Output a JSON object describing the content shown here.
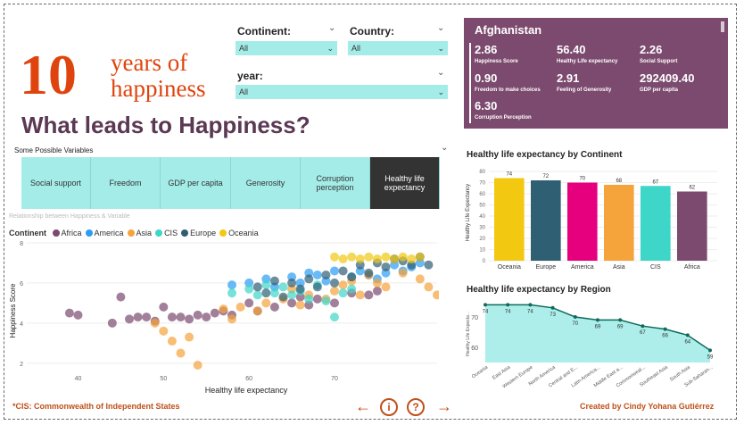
{
  "header": {
    "big_number": "10",
    "subtitle_line1": "years of",
    "subtitle_line2": "happiness",
    "title": "What leads to Happiness?"
  },
  "filters": {
    "continent": {
      "label": "Continent:",
      "value": "All"
    },
    "country": {
      "label": "Country:",
      "value": "All"
    },
    "year": {
      "label": "year:",
      "value": "All"
    }
  },
  "kpi": {
    "country": "Afghanistan",
    "items": [
      {
        "value": "2.86",
        "label": "Happiness Score"
      },
      {
        "value": "56.40",
        "label": "Healthy Life expectancy"
      },
      {
        "value": "2.26",
        "label": "Social Support"
      },
      {
        "value": "0.90",
        "label": "Freedom to make choices"
      },
      {
        "value": "2.91",
        "label": "Feeling of Generosity"
      },
      {
        "value": "292409.40",
        "label": "GDP per capita"
      },
      {
        "value": "6.30",
        "label": "Corruption Perception"
      }
    ],
    "bg_color": "#7b4a6e"
  },
  "variables": {
    "title": "Some Possible Variables",
    "buttons": [
      "Social support",
      "Freedom",
      "GDP per capita",
      "Generosity",
      "Corruption perception",
      "Healthy life expectancy"
    ],
    "active": "Healthy life expectancy"
  },
  "scatter": {
    "subtitle": "Relationship between Happiness & Variable",
    "legend_title": "Continent",
    "xlabel": "Healthy life expectancy",
    "ylabel": "Happiness Score"
  },
  "footer": {
    "note": "*CIS: Commonwealth of Independent States",
    "credit": "Created by Cindy Yohana Gutiérrez"
  },
  "nav": {
    "back": "back-arrow-icon",
    "info": "info-icon",
    "help": "help-icon",
    "next": "next-arrow-icon"
  },
  "chart_data": [
    {
      "type": "scatter",
      "title": "",
      "xlabel": "Healthy life expectancy",
      "ylabel": "Happiness Score",
      "xlim": [
        34,
        82
      ],
      "ylim": [
        1.5,
        8
      ],
      "xticks": [
        40,
        50,
        60,
        70
      ],
      "yticks": [
        2,
        4,
        6,
        8
      ],
      "series": [
        {
          "name": "Africa",
          "color": "#7b4a6e",
          "points": [
            [
              39,
              4.5
            ],
            [
              40,
              4.4
            ],
            [
              44,
              4.0
            ],
            [
              45,
              5.3
            ],
            [
              46,
              4.2
            ],
            [
              47,
              4.3
            ],
            [
              48,
              4.3
            ],
            [
              49,
              4.1
            ],
            [
              50,
              4.8
            ],
            [
              51,
              4.3
            ],
            [
              52,
              4.3
            ],
            [
              53,
              4.2
            ],
            [
              54,
              4.4
            ],
            [
              55,
              4.3
            ],
            [
              56,
              4.5
            ],
            [
              57,
              4.6
            ],
            [
              58,
              4.4
            ],
            [
              60,
              5.0
            ],
            [
              61,
              4.6
            ],
            [
              63,
              4.8
            ],
            [
              65,
              5.0
            ],
            [
              66,
              5.3
            ],
            [
              67,
              4.9
            ],
            [
              68,
              5.2
            ],
            [
              70,
              5.0
            ],
            [
              72,
              5.5
            ],
            [
              74,
              5.4
            ],
            [
              75,
              5.6
            ]
          ]
        },
        {
          "name": "America",
          "color": "#2a9df4",
          "points": [
            [
              58,
              5.9
            ],
            [
              60,
              6.0
            ],
            [
              62,
              6.2
            ],
            [
              63,
              5.8
            ],
            [
              65,
              6.3
            ],
            [
              66,
              6.0
            ],
            [
              67,
              6.5
            ],
            [
              68,
              6.4
            ],
            [
              69,
              6.1
            ],
            [
              70,
              6.6
            ],
            [
              72,
              6.3
            ],
            [
              73,
              6.6
            ],
            [
              74,
              6.4
            ],
            [
              75,
              6.2
            ],
            [
              76,
              6.5
            ],
            [
              77,
              6.9
            ],
            [
              78,
              6.6
            ],
            [
              79,
              6.8
            ],
            [
              80,
              7.0
            ]
          ]
        },
        {
          "name": "Asia",
          "color": "#f5a33b",
          "points": [
            [
              49,
              4.0
            ],
            [
              50,
              3.6
            ],
            [
              51,
              3.1
            ],
            [
              52,
              2.5
            ],
            [
              53,
              3.3
            ],
            [
              54,
              1.9
            ],
            [
              57,
              4.7
            ],
            [
              58,
              4.2
            ],
            [
              59,
              4.8
            ],
            [
              61,
              4.6
            ],
            [
              62,
              5.0
            ],
            [
              64,
              5.2
            ],
            [
              65,
              5.7
            ],
            [
              66,
              4.9
            ],
            [
              67,
              5.4
            ],
            [
              69,
              5.2
            ],
            [
              70,
              5.6
            ],
            [
              71,
              5.9
            ],
            [
              72,
              6.1
            ],
            [
              73,
              5.4
            ],
            [
              74,
              6.4
            ],
            [
              75,
              6.0
            ],
            [
              76,
              5.8
            ],
            [
              78,
              6.5
            ],
            [
              80,
              6.2
            ],
            [
              81,
              5.8
            ],
            [
              82,
              5.4
            ]
          ]
        },
        {
          "name": "CIS",
          "color": "#3ed6c9",
          "points": [
            [
              58,
              5.5
            ],
            [
              60,
              5.7
            ],
            [
              61,
              5.4
            ],
            [
              62,
              5.9
            ],
            [
              63,
              5.5
            ],
            [
              64,
              5.8
            ],
            [
              65,
              5.4
            ],
            [
              66,
              5.6
            ],
            [
              67,
              5.2
            ],
            [
              68,
              5.9
            ],
            [
              69,
              5.1
            ],
            [
              70,
              4.3
            ],
            [
              71,
              5.5
            ],
            [
              72,
              5.7
            ]
          ]
        },
        {
          "name": "Europe",
          "color": "#2f5f73",
          "points": [
            [
              61,
              5.8
            ],
            [
              62,
              5.5
            ],
            [
              63,
              6.1
            ],
            [
              64,
              5.3
            ],
            [
              65,
              6.0
            ],
            [
              66,
              5.7
            ],
            [
              67,
              6.2
            ],
            [
              68,
              5.8
            ],
            [
              69,
              6.4
            ],
            [
              70,
              6.0
            ],
            [
              71,
              6.6
            ],
            [
              72,
              6.3
            ],
            [
              73,
              6.9
            ],
            [
              74,
              6.5
            ],
            [
              75,
              7.0
            ],
            [
              76,
              6.8
            ],
            [
              77,
              7.2
            ],
            [
              78,
              7.1
            ],
            [
              79,
              6.9
            ],
            [
              80,
              7.3
            ],
            [
              81,
              6.9
            ]
          ]
        },
        {
          "name": "Oceania",
          "color": "#f2c811",
          "points": [
            [
              70,
              7.3
            ],
            [
              71,
              7.2
            ],
            [
              72,
              7.3
            ],
            [
              73,
              7.2
            ],
            [
              74,
              7.3
            ],
            [
              75,
              7.2
            ],
            [
              76,
              7.3
            ],
            [
              77,
              7.2
            ],
            [
              78,
              7.3
            ],
            [
              79,
              7.2
            ],
            [
              80,
              7.3
            ]
          ]
        }
      ]
    },
    {
      "type": "bar",
      "title": "Healthy life expectancy by Continent",
      "xlabel": "",
      "ylabel": "Healthy Life Expectancy",
      "categories": [
        "Oceania",
        "Europe",
        "America",
        "Asia",
        "CIS",
        "Africa"
      ],
      "values": [
        74,
        72,
        70,
        68,
        67,
        62
      ],
      "colors": [
        "#f2c811",
        "#2f5f73",
        "#e6007e",
        "#f5a33b",
        "#3ed6c9",
        "#7b4a6e"
      ],
      "ylim": [
        0,
        80
      ],
      "yticks": [
        0,
        10,
        20,
        30,
        40,
        50,
        60,
        70,
        80
      ]
    },
    {
      "type": "area",
      "title": "Healthy life expectancy by Region",
      "xlabel": "",
      "ylabel": "Healthy Life Expecta...",
      "categories": [
        "Oceania",
        "East Asia",
        "Western Europe",
        "North America",
        "Central and E...",
        "Latin America...",
        "Middle East a...",
        "Commonweal...",
        "Southeast Asia",
        "South Asia",
        "Sub-Saharan..."
      ],
      "values": [
        74,
        74,
        74,
        73,
        70,
        69,
        69,
        67,
        66,
        64,
        59
      ],
      "ylim": [
        55,
        75
      ],
      "yticks": [
        60,
        70
      ],
      "line_color": "#0e6b5a",
      "fill_color": "#a4ece8"
    }
  ]
}
